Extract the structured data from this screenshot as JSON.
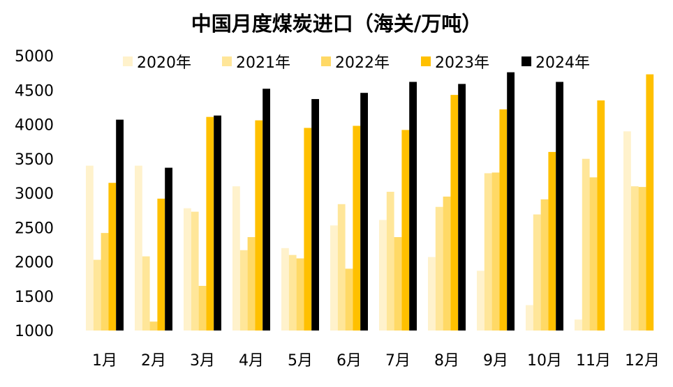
{
  "chart_data": {
    "type": "bar",
    "title": "中国月度煤炭进口（海关/万吨）",
    "xlabel": "",
    "ylabel": "",
    "ylim": [
      1000,
      5000
    ],
    "yticks": [
      1000,
      1500,
      2000,
      2500,
      3000,
      3500,
      4000,
      4500,
      5000
    ],
    "grid": false,
    "legend_position": "top",
    "categories": [
      "1月",
      "2月",
      "3月",
      "4月",
      "5月",
      "6月",
      "7月",
      "8月",
      "9月",
      "10月",
      "11月",
      "12月"
    ],
    "series": [
      {
        "name": "2020年",
        "color": "#FFF2CC",
        "values": [
          3400,
          3400,
          2780,
          3100,
          2200,
          2530,
          2610,
          2070,
          1870,
          1370,
          1160,
          3900
        ]
      },
      {
        "name": "2021年",
        "color": "#FFE699",
        "values": [
          2030,
          2080,
          2730,
          2170,
          2100,
          2840,
          3020,
          2800,
          3290,
          2690,
          3500,
          3100
        ]
      },
      {
        "name": "2022年",
        "color": "#FFD966",
        "values": [
          2420,
          1130,
          1650,
          2360,
          2050,
          1900,
          2360,
          2950,
          3300,
          2910,
          3230,
          3090
        ]
      },
      {
        "name": "2023年",
        "color": "#FFC000",
        "values": [
          3150,
          2920,
          4110,
          4060,
          3950,
          3980,
          3920,
          4430,
          4220,
          3600,
          4350,
          4730
        ]
      },
      {
        "name": "2024年",
        "color": "#000000",
        "values": [
          4070,
          3370,
          4130,
          4520,
          4370,
          4460,
          4620,
          4590,
          4760,
          4620,
          null,
          null
        ]
      }
    ]
  }
}
